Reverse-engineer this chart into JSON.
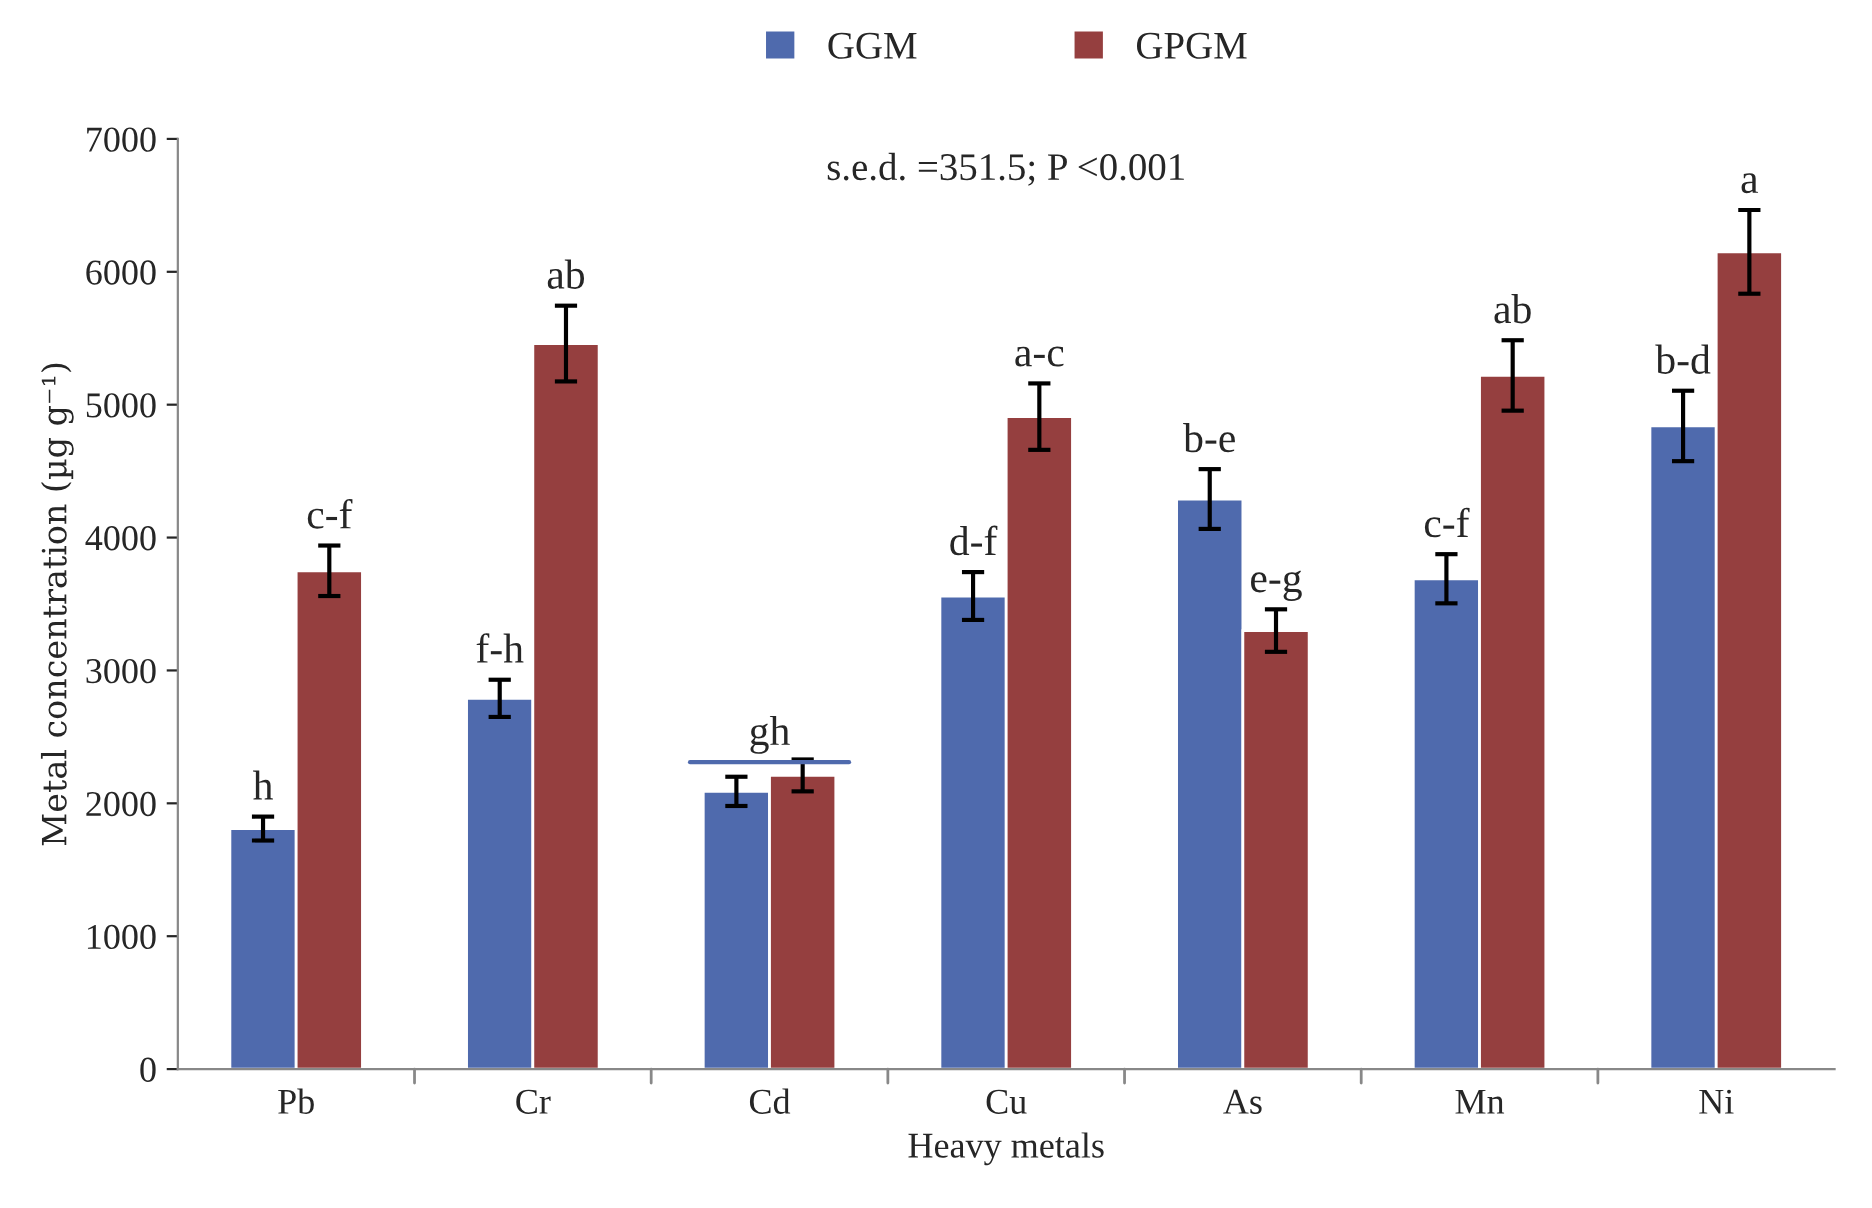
{
  "chart_data": {
    "type": "bar",
    "xlabel": "Heavy metals",
    "ylabel": "Metal concentration (µg g⁻¹)",
    "categories": [
      "Pb",
      "Cr",
      "Cd",
      "Cu",
      "As",
      "Mn",
      "Ni"
    ],
    "series": [
      {
        "name": "GGM",
        "color": "#4f6aad",
        "values": [
          1810,
          2790,
          2090,
          3560,
          4290,
          3690,
          4840
        ],
        "errors": [
          90,
          140,
          110,
          180,
          225,
          185,
          265
        ],
        "value_labels": [
          "h",
          "f-h",
          null,
          "d-f",
          "b-e",
          "c-f",
          "b-d"
        ]
      },
      {
        "name": "GPGM",
        "color": "#953f3f",
        "values": [
          3750,
          5460,
          2210,
          4910,
          3300,
          5220,
          6150
        ],
        "errors": [
          190,
          285,
          120,
          250,
          160,
          265,
          315
        ],
        "value_labels": [
          "c-f",
          "ab",
          null,
          "a-c",
          "e-g",
          "ab",
          "a"
        ]
      }
    ],
    "ylim": [
      0,
      7000
    ],
    "yticks": [
      0,
      1000,
      2000,
      3000,
      4000,
      5000,
      6000,
      7000
    ],
    "annotations": [
      "s.e.d. =351.5; P <0.001",
      "gh"
    ],
    "grid": false,
    "legend": "top"
  }
}
